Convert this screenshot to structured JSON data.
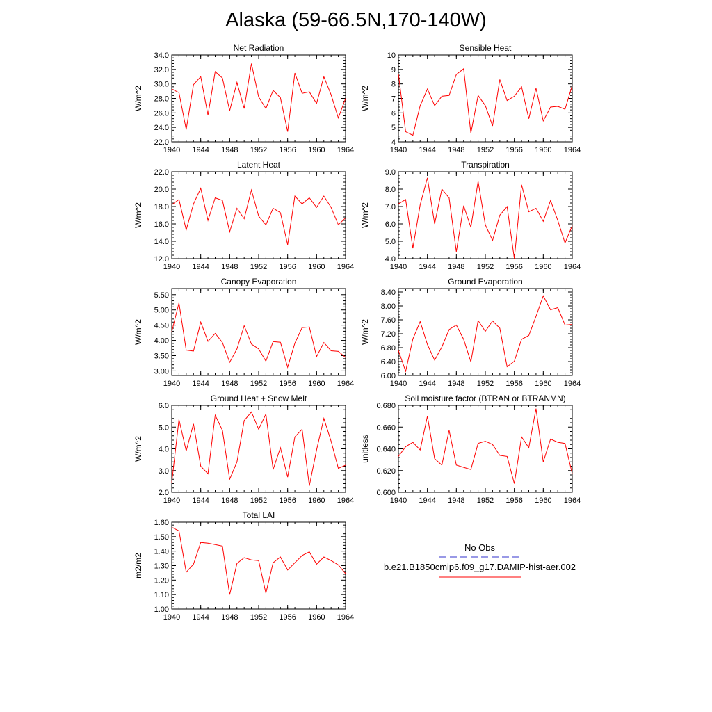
{
  "title": "Alaska (59-66.5N,170-140W)",
  "legend": {
    "obs_label": "No Obs",
    "model_label": "b.e21.B1850cmip6.f09_g17.DAMIP-hist-aer.002",
    "obs_color": "#3333cc",
    "model_color": "#ff0000"
  },
  "chart_data": [
    {
      "type": "line",
      "title": "Net Radiation",
      "ylabel": "W/m^2",
      "xlim": [
        1940,
        1964
      ],
      "xticks": [
        "1940",
        "1944",
        "1948",
        "1952",
        "1956",
        "1960",
        "1964"
      ],
      "ylim": [
        22.0,
        34.0
      ],
      "yticks": [
        "22.0",
        "24.0",
        "26.0",
        "28.0",
        "30.0",
        "32.0",
        "34.0"
      ],
      "x": [
        1940,
        1941,
        1942,
        1943,
        1944,
        1945,
        1946,
        1947,
        1948,
        1949,
        1950,
        1951,
        1952,
        1953,
        1954,
        1955,
        1956,
        1957,
        1958,
        1959,
        1960,
        1961,
        1962,
        1963,
        1964
      ],
      "series": [
        {
          "values": [
            29.3,
            28.8,
            23.7,
            29.9,
            31.0,
            25.7,
            31.7,
            30.8,
            26.3,
            30.2,
            26.6,
            32.8,
            28.2,
            26.6,
            29.1,
            28.1,
            23.4,
            31.5,
            28.7,
            28.9,
            27.3,
            31.0,
            28.5,
            25.3,
            28.0
          ]
        }
      ]
    },
    {
      "type": "line",
      "title": "Sensible Heat",
      "ylabel": "W/m^2",
      "xlim": [
        1940,
        1964
      ],
      "xticks": [
        "1940",
        "1944",
        "1948",
        "1952",
        "1956",
        "1960",
        "1964"
      ],
      "ylim": [
        4,
        10
      ],
      "yticks": [
        "4",
        "5",
        "6",
        "7",
        "8",
        "9",
        "10"
      ],
      "x": [
        1940,
        1941,
        1942,
        1943,
        1944,
        1945,
        1946,
        1947,
        1948,
        1949,
        1950,
        1951,
        1952,
        1953,
        1954,
        1955,
        1956,
        1957,
        1958,
        1959,
        1960,
        1961,
        1962,
        1963,
        1964
      ],
      "series": [
        {
          "values": [
            8.7,
            4.7,
            4.45,
            6.5,
            7.65,
            6.5,
            7.15,
            7.2,
            8.65,
            9.05,
            4.6,
            7.2,
            6.5,
            5.1,
            8.3,
            6.85,
            7.15,
            7.8,
            5.6,
            7.7,
            5.45,
            6.4,
            6.45,
            6.25,
            7.9
          ]
        }
      ]
    },
    {
      "type": "line",
      "title": "Latent Heat",
      "ylabel": "W/m^2",
      "xlim": [
        1940,
        1964
      ],
      "xticks": [
        "1940",
        "1944",
        "1948",
        "1952",
        "1956",
        "1960",
        "1964"
      ],
      "ylim": [
        12.0,
        22.0
      ],
      "yticks": [
        "12.0",
        "14.0",
        "16.0",
        "18.0",
        "20.0",
        "22.0"
      ],
      "x": [
        1940,
        1941,
        1942,
        1943,
        1944,
        1945,
        1946,
        1947,
        1948,
        1949,
        1950,
        1951,
        1952,
        1953,
        1954,
        1955,
        1956,
        1957,
        1958,
        1959,
        1960,
        1961,
        1962,
        1963,
        1964
      ],
      "series": [
        {
          "values": [
            18.2,
            18.8,
            15.3,
            18.3,
            20.1,
            16.4,
            19.0,
            18.7,
            15.1,
            17.8,
            16.6,
            19.9,
            16.9,
            15.9,
            17.8,
            17.3,
            13.6,
            19.2,
            18.3,
            19.0,
            17.9,
            19.2,
            17.9,
            15.9,
            16.7
          ]
        }
      ]
    },
    {
      "type": "line",
      "title": "Transpiration",
      "ylabel": "W/m^2",
      "xlim": [
        1940,
        1964
      ],
      "xticks": [
        "1940",
        "1944",
        "1948",
        "1952",
        "1956",
        "1960",
        "1964"
      ],
      "ylim": [
        4.0,
        9.0
      ],
      "yticks": [
        "4.0",
        "5.0",
        "6.0",
        "7.0",
        "8.0",
        "9.0"
      ],
      "x": [
        1940,
        1941,
        1942,
        1943,
        1944,
        1945,
        1946,
        1947,
        1948,
        1949,
        1950,
        1951,
        1952,
        1953,
        1954,
        1955,
        1956,
        1957,
        1958,
        1959,
        1960,
        1961,
        1962,
        1963,
        1964
      ],
      "series": [
        {
          "values": [
            7.15,
            7.4,
            4.6,
            7.1,
            8.65,
            6.0,
            8.0,
            7.5,
            4.4,
            7.05,
            5.8,
            8.45,
            5.95,
            5.05,
            6.5,
            7.0,
            4.0,
            8.25,
            6.7,
            6.9,
            6.15,
            7.35,
            6.2,
            4.9,
            5.9
          ]
        }
      ]
    },
    {
      "type": "line",
      "title": "Canopy Evaporation",
      "ylabel": "W/m^2",
      "xlim": [
        1940,
        1964
      ],
      "xticks": [
        "1940",
        "1944",
        "1948",
        "1952",
        "1956",
        "1960",
        "1964"
      ],
      "ylim": [
        2.85,
        5.7
      ],
      "yticks": [
        "3.00",
        "3.50",
        "4.00",
        "4.50",
        "5.00",
        "5.50"
      ],
      "ytick_values": [
        3.0,
        3.5,
        4.0,
        4.5,
        5.0,
        5.5
      ],
      "x": [
        1940,
        1941,
        1942,
        1943,
        1944,
        1945,
        1946,
        1947,
        1948,
        1949,
        1950,
        1951,
        1952,
        1953,
        1954,
        1955,
        1956,
        1957,
        1958,
        1959,
        1960,
        1961,
        1962,
        1963,
        1964
      ],
      "series": [
        {
          "values": [
            4.28,
            5.23,
            3.68,
            3.65,
            4.6,
            3.97,
            4.23,
            3.93,
            3.28,
            3.72,
            4.48,
            3.88,
            3.72,
            3.32,
            3.96,
            3.94,
            3.12,
            3.91,
            4.42,
            4.44,
            3.47,
            3.93,
            3.66,
            3.64,
            3.44
          ]
        }
      ]
    },
    {
      "type": "line",
      "title": "Ground Evaporation",
      "ylabel": "W/m^2",
      "xlim": [
        1940,
        1964
      ],
      "xticks": [
        "1940",
        "1944",
        "1948",
        "1952",
        "1956",
        "1960",
        "1964"
      ],
      "ylim": [
        6.0,
        8.5
      ],
      "yticks": [
        "6.00",
        "6.40",
        "6.80",
        "7.20",
        "7.60",
        "8.00",
        "8.40"
      ],
      "ytick_values": [
        6.0,
        6.4,
        6.8,
        7.2,
        7.6,
        8.0,
        8.4
      ],
      "x": [
        1940,
        1941,
        1942,
        1943,
        1944,
        1945,
        1946,
        1947,
        1948,
        1949,
        1950,
        1951,
        1952,
        1953,
        1954,
        1955,
        1956,
        1957,
        1958,
        1959,
        1960,
        1961,
        1962,
        1963,
        1964
      ],
      "series": [
        {
          "values": [
            6.72,
            6.12,
            7.05,
            7.55,
            6.89,
            6.44,
            6.82,
            7.32,
            7.45,
            7.04,
            6.39,
            7.58,
            7.27,
            7.57,
            7.36,
            6.25,
            6.41,
            7.04,
            7.15,
            7.7,
            8.29,
            7.89,
            7.95,
            7.45,
            7.47
          ]
        }
      ]
    },
    {
      "type": "line",
      "title": "Ground Heat + Snow Melt",
      "ylabel": "W/m^2",
      "xlim": [
        1940,
        1964
      ],
      "xticks": [
        "1940",
        "1944",
        "1948",
        "1952",
        "1956",
        "1960",
        "1964"
      ],
      "ylim": [
        2.0,
        6.0
      ],
      "yticks": [
        "2.0",
        "3.0",
        "4.0",
        "5.0",
        "6.0"
      ],
      "x": [
        1940,
        1941,
        1942,
        1943,
        1944,
        1945,
        1946,
        1947,
        1948,
        1949,
        1950,
        1951,
        1952,
        1953,
        1954,
        1955,
        1956,
        1957,
        1958,
        1959,
        1960,
        1961,
        1962,
        1963,
        1964
      ],
      "series": [
        {
          "values": [
            2.45,
            5.35,
            3.9,
            5.15,
            3.2,
            2.85,
            5.55,
            4.85,
            2.6,
            3.4,
            5.3,
            5.7,
            4.9,
            5.6,
            3.05,
            4.05,
            2.7,
            4.55,
            4.9,
            2.3,
            3.95,
            5.4,
            4.35,
            3.1,
            3.25
          ]
        }
      ]
    },
    {
      "type": "line",
      "title": "Soil moisture factor (BTRAN or BTRANMN)",
      "ylabel": "unitless",
      "xlim": [
        1940,
        1964
      ],
      "xticks": [
        "1940",
        "1944",
        "1948",
        "1952",
        "1956",
        "1960",
        "1964"
      ],
      "ylim": [
        0.6,
        0.68
      ],
      "yticks": [
        "0.600",
        "0.620",
        "0.640",
        "0.660",
        "0.680"
      ],
      "x": [
        1940,
        1941,
        1942,
        1943,
        1944,
        1945,
        1946,
        1947,
        1948,
        1949,
        1950,
        1951,
        1952,
        1953,
        1954,
        1955,
        1956,
        1957,
        1958,
        1959,
        1960,
        1961,
        1962,
        1963,
        1964
      ],
      "series": [
        {
          "values": [
            0.633,
            0.642,
            0.646,
            0.639,
            0.67,
            0.631,
            0.625,
            0.657,
            0.625,
            0.623,
            0.621,
            0.645,
            0.647,
            0.644,
            0.634,
            0.633,
            0.608,
            0.651,
            0.641,
            0.677,
            0.628,
            0.649,
            0.646,
            0.645,
            0.617
          ]
        }
      ]
    },
    {
      "type": "line",
      "title": "Total LAI",
      "ylabel": "m2/m2",
      "xlim": [
        1940,
        1964
      ],
      "xticks": [
        "1940",
        "1944",
        "1948",
        "1952",
        "1956",
        "1960",
        "1964"
      ],
      "ylim": [
        1.0,
        1.6
      ],
      "yticks": [
        "1.00",
        "1.10",
        "1.20",
        "1.30",
        "1.40",
        "1.50",
        "1.60"
      ],
      "ytick_values": [
        1.0,
        1.1,
        1.2,
        1.3,
        1.4,
        1.5,
        1.6
      ],
      "x": [
        1940,
        1941,
        1942,
        1943,
        1944,
        1945,
        1946,
        1947,
        1948,
        1949,
        1950,
        1951,
        1952,
        1953,
        1954,
        1955,
        1956,
        1957,
        1958,
        1959,
        1960,
        1961,
        1962,
        1963,
        1964
      ],
      "series": [
        {
          "values": [
            1.565,
            1.54,
            1.255,
            1.31,
            1.46,
            1.455,
            1.445,
            1.435,
            1.1,
            1.315,
            1.355,
            1.34,
            1.335,
            1.11,
            1.32,
            1.36,
            1.27,
            1.32,
            1.37,
            1.395,
            1.31,
            1.36,
            1.335,
            1.305,
            1.245
          ]
        }
      ]
    }
  ]
}
